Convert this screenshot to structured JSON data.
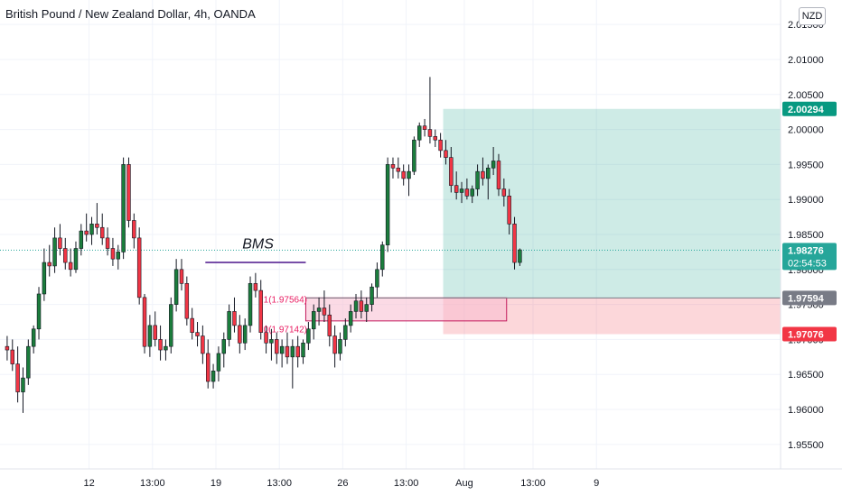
{
  "header": {
    "title": "British Pound / New Zealand Dollar, 4h, OANDA",
    "currency": "NZD"
  },
  "chart_data": {
    "type": "candlestick",
    "symbol": "GBPNZD",
    "interval": "4h",
    "ylim": [
      1.9515,
      2.0185
    ],
    "yticks": [
      "2.01500",
      "2.01000",
      "2.00500",
      "2.00000",
      "1.99500",
      "1.99000",
      "1.98500",
      "1.98000",
      "1.97500",
      "1.97000",
      "1.96500",
      "1.96000",
      "1.95500"
    ],
    "yticks_values": [
      2.015,
      2.01,
      2.005,
      2.0,
      1.995,
      1.99,
      1.985,
      1.98,
      1.975,
      1.97,
      1.965,
      1.96,
      1.955
    ],
    "xticks": [
      {
        "label": "12",
        "bar": 16
      },
      {
        "label": "13:00",
        "bar": 28
      },
      {
        "label": "19",
        "bar": 40
      },
      {
        "label": "13:00",
        "bar": 52
      },
      {
        "label": "26",
        "bar": 64
      },
      {
        "label": "13:00",
        "bar": 76
      },
      {
        "label": "Aug",
        "bar": 87
      },
      {
        "label": "13:00",
        "bar": 100
      },
      {
        "label": "9",
        "bar": 112
      }
    ],
    "colors": {
      "up": "#26a69a",
      "down": "#ef5350",
      "up_dark": "#1b7d3c",
      "grid": "#f0f3fa",
      "price_line": "#26a69a",
      "target": "#089981",
      "stop": "#f23645",
      "entry": "#787b86"
    },
    "candles": [
      [
        1.969,
        1.9705,
        1.967,
        1.9685
      ],
      [
        1.9685,
        1.97,
        1.9655,
        1.9665
      ],
      [
        1.9665,
        1.969,
        1.961,
        1.9625
      ],
      [
        1.9625,
        1.966,
        1.9595,
        1.9645
      ],
      [
        1.9645,
        1.97,
        1.9635,
        1.969
      ],
      [
        1.969,
        1.972,
        1.968,
        1.9715
      ],
      [
        1.9715,
        1.9775,
        1.97,
        1.9765
      ],
      [
        1.9765,
        1.983,
        1.9755,
        1.981
      ],
      [
        1.981,
        1.9835,
        1.979,
        1.9805
      ],
      [
        1.9805,
        1.986,
        1.9795,
        1.9845
      ],
      [
        1.9845,
        1.9865,
        1.982,
        1.983
      ],
      [
        1.983,
        1.9845,
        1.98,
        1.981
      ],
      [
        1.981,
        1.983,
        1.979,
        1.98
      ],
      [
        1.98,
        1.984,
        1.9795,
        1.983
      ],
      [
        1.983,
        1.9865,
        1.982,
        1.9855
      ],
      [
        1.9855,
        1.988,
        1.984,
        1.985
      ],
      [
        1.985,
        1.9875,
        1.9835,
        1.9865
      ],
      [
        1.9865,
        1.9895,
        1.985,
        1.986
      ],
      [
        1.986,
        1.988,
        1.9835,
        1.9845
      ],
      [
        1.9845,
        1.986,
        1.982,
        1.983
      ],
      [
        1.983,
        1.9845,
        1.9805,
        1.9815
      ],
      [
        1.9815,
        1.9835,
        1.98,
        1.9825
      ],
      [
        1.9825,
        1.996,
        1.9815,
        1.995
      ],
      [
        1.995,
        1.996,
        1.986,
        1.987
      ],
      [
        1.987,
        1.988,
        1.983,
        1.9845
      ],
      [
        1.9845,
        1.986,
        1.975,
        1.976
      ],
      [
        1.976,
        1.9765,
        1.968,
        1.969
      ],
      [
        1.969,
        1.9735,
        1.9675,
        1.972
      ],
      [
        1.972,
        1.974,
        1.969,
        1.97
      ],
      [
        1.97,
        1.972,
        1.967,
        1.9685
      ],
      [
        1.9685,
        1.97,
        1.967,
        1.969
      ],
      [
        1.969,
        1.976,
        1.968,
        1.975
      ],
      [
        1.975,
        1.9815,
        1.974,
        1.98
      ],
      [
        1.98,
        1.9815,
        1.977,
        1.978
      ],
      [
        1.978,
        1.979,
        1.972,
        1.973
      ],
      [
        1.973,
        1.9745,
        1.97,
        1.971
      ],
      [
        1.971,
        1.9725,
        1.969,
        1.9705
      ],
      [
        1.9705,
        1.972,
        1.9665,
        1.968
      ],
      [
        1.968,
        1.97,
        1.963,
        1.964
      ],
      [
        1.964,
        1.9665,
        1.963,
        1.9655
      ],
      [
        1.9655,
        1.969,
        1.964,
        1.968
      ],
      [
        1.968,
        1.971,
        1.966,
        1.97
      ],
      [
        1.97,
        1.975,
        1.969,
        1.974
      ],
      [
        1.974,
        1.976,
        1.971,
        1.972
      ],
      [
        1.972,
        1.9735,
        1.968,
        1.9695
      ],
      [
        1.9695,
        1.973,
        1.9685,
        1.972
      ],
      [
        1.972,
        1.979,
        1.971,
        1.978
      ],
      [
        1.978,
        1.9795,
        1.976,
        1.977
      ],
      [
        1.977,
        1.9785,
        1.97,
        1.971
      ],
      [
        1.971,
        1.972,
        1.968,
        1.9695
      ],
      [
        1.9695,
        1.9715,
        1.967,
        1.97
      ],
      [
        1.97,
        1.971,
        1.9665,
        1.968
      ],
      [
        1.968,
        1.97,
        1.966,
        1.969
      ],
      [
        1.969,
        1.971,
        1.9665,
        1.9675
      ],
      [
        1.9675,
        1.97,
        1.963,
        1.969
      ],
      [
        1.969,
        1.9705,
        1.966,
        1.9675
      ],
      [
        1.9675,
        1.97,
        1.9665,
        1.9695
      ],
      [
        1.9695,
        1.9725,
        1.9685,
        1.9715
      ],
      [
        1.9715,
        1.975,
        1.97,
        1.974
      ],
      [
        1.974,
        1.976,
        1.972,
        1.9745
      ],
      [
        1.9745,
        1.977,
        1.9725,
        1.9735
      ],
      [
        1.9735,
        1.975,
        1.969,
        1.9705
      ],
      [
        1.9705,
        1.972,
        1.966,
        1.968
      ],
      [
        1.968,
        1.971,
        1.967,
        1.97
      ],
      [
        1.97,
        1.973,
        1.969,
        1.972
      ],
      [
        1.972,
        1.975,
        1.971,
        1.974
      ],
      [
        1.974,
        1.9765,
        1.973,
        1.9755
      ],
      [
        1.9755,
        1.977,
        1.973,
        1.974
      ],
      [
        1.974,
        1.976,
        1.9725,
        1.975
      ],
      [
        1.975,
        1.978,
        1.974,
        1.9775
      ],
      [
        1.9775,
        1.981,
        1.976,
        1.98
      ],
      [
        1.98,
        1.984,
        1.979,
        1.9835
      ],
      [
        1.9835,
        1.996,
        1.9825,
        1.995
      ],
      [
        1.995,
        1.996,
        1.993,
        1.9945
      ],
      [
        1.9945,
        1.996,
        1.993,
        1.994
      ],
      [
        1.994,
        1.995,
        1.992,
        1.993
      ],
      [
        1.993,
        1.995,
        1.9905,
        1.994
      ],
      [
        1.994,
        1.999,
        1.9935,
        1.9985
      ],
      [
        1.9985,
        2.001,
        1.9975,
        2.0005
      ],
      [
        2.0005,
        2.0015,
        1.999,
        2.0
      ],
      [
        2.0,
        2.0075,
        1.998,
        1.999
      ],
      [
        1.999,
        2.0,
        1.9975,
        1.9985
      ],
      [
        1.9985,
        1.9995,
        1.996,
        1.997
      ],
      [
        1.997,
        1.9985,
        1.995,
        1.996
      ],
      [
        1.996,
        1.9975,
        1.991,
        1.992
      ],
      [
        1.992,
        1.994,
        1.99,
        1.991
      ],
      [
        1.991,
        1.9925,
        1.9895,
        1.9915
      ],
      [
        1.9915,
        1.993,
        1.99,
        1.9905
      ],
      [
        1.9905,
        1.992,
        1.9895,
        1.9915
      ],
      [
        1.9915,
        1.995,
        1.9905,
        1.994
      ],
      [
        1.994,
        1.996,
        1.992,
        1.993
      ],
      [
        1.993,
        1.995,
        1.99,
        1.9945
      ],
      [
        1.9945,
        1.9975,
        1.9935,
        1.9955
      ],
      [
        1.9955,
        1.9965,
        1.9905,
        1.9915
      ],
      [
        1.9915,
        1.993,
        1.989,
        1.9905
      ],
      [
        1.9905,
        1.9915,
        1.985,
        1.9865
      ],
      [
        1.9865,
        1.9875,
        1.98,
        1.981
      ],
      [
        1.981,
        1.983,
        1.9805,
        1.9828
      ]
    ],
    "current_price": 1.98276,
    "countdown": "02:54:53",
    "annotations": [
      {
        "type": "text",
        "text": "BMS",
        "bar": 45,
        "price": 1.9825
      },
      {
        "type": "segment",
        "from_bar": 38,
        "to_bar": 57,
        "price": 1.981
      },
      {
        "type": "fib_label",
        "text": "1(1.97564)",
        "bar": 49,
        "price": 1.97564
      },
      {
        "type": "fib_label",
        "text": "0(1.97142)",
        "bar": 49,
        "price": 1.97142
      }
    ],
    "demand_zone": {
      "from_bar": 57,
      "to_bar": 95,
      "top": 1.97594,
      "bottom": 1.97265
    },
    "position": {
      "from_bar": 83,
      "to_bar": 98,
      "target": 2.00294,
      "entry": 1.97594,
      "stop": 1.97076,
      "target_label": "2.00294",
      "entry_label": "1.97594",
      "stop_label": "1.97076"
    },
    "price_label": "1.98276"
  }
}
